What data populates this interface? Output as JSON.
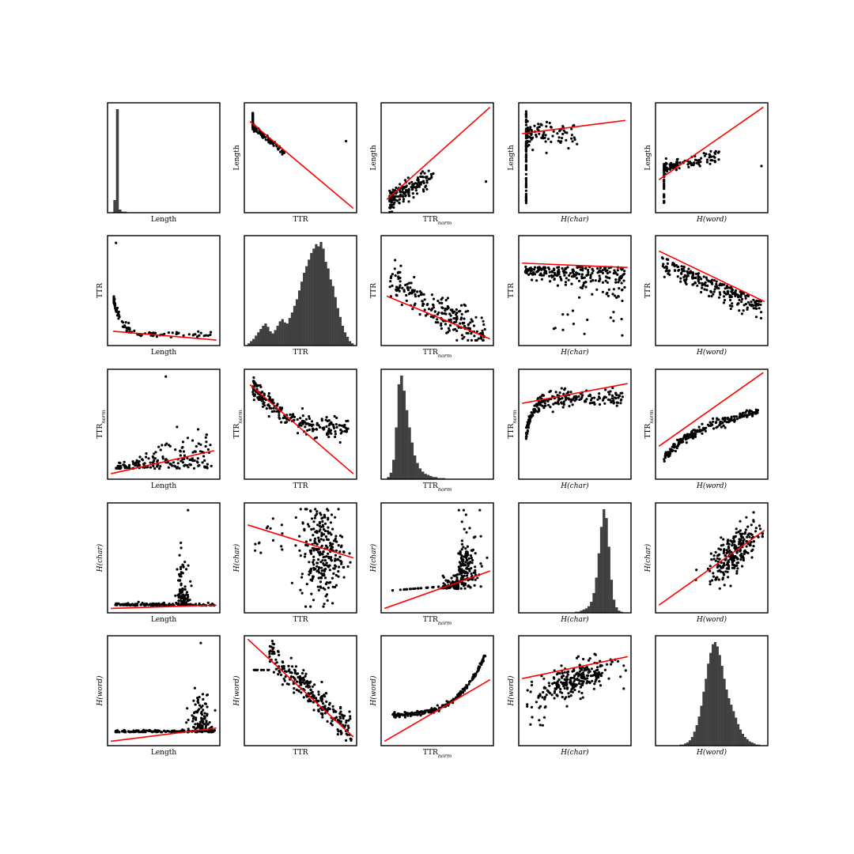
{
  "chart_data": {
    "type": "scatter-matrix",
    "variables": [
      {
        "name": "Length",
        "base": "Length",
        "sub": "",
        "italic": false
      },
      {
        "name": "TTR",
        "base": "TTR",
        "sub": "",
        "italic": false
      },
      {
        "name": "TTR_norm",
        "base": "TTR",
        "sub": "norm",
        "italic": false
      },
      {
        "name": "H(char)",
        "base": "H(char)",
        "sub": "",
        "italic": true
      },
      {
        "name": "H(word)",
        "base": "H(word)",
        "sub": "",
        "italic": true
      }
    ],
    "grid": "off",
    "ticks": "none",
    "diagonal": "histogram",
    "off_diagonal": "scatter with linear regression fit",
    "colors": {
      "points": "#000000",
      "fit_line": "#ff0000",
      "histogram": "#404040",
      "frame": "#000000"
    },
    "histograms": [
      [
        0,
        12,
        98,
        3,
        1,
        1,
        0,
        0,
        0,
        0,
        0,
        0,
        0,
        0,
        0,
        0,
        0,
        0,
        0,
        0,
        0,
        0,
        0,
        0,
        0,
        0,
        0,
        0,
        0,
        0,
        0,
        0,
        0,
        0,
        0,
        0,
        0,
        0,
        0,
        0
      ],
      [
        2,
        4,
        6,
        9,
        12,
        15,
        18,
        20,
        17,
        13,
        11,
        14,
        18,
        22,
        24,
        21,
        20,
        25,
        30,
        36,
        42,
        50,
        58,
        66,
        72,
        78,
        84,
        88,
        92,
        90,
        94,
        88,
        76,
        70,
        60,
        54,
        44,
        34,
        26,
        18,
        12,
        8,
        4,
        2
      ],
      [
        0,
        2,
        6,
        18,
        48,
        88,
        96,
        82,
        64,
        48,
        34,
        22,
        15,
        10,
        7,
        5,
        4,
        3,
        2,
        2,
        1,
        1,
        1,
        0,
        0,
        0,
        0,
        0,
        0,
        0,
        0,
        0,
        0,
        0,
        0,
        0,
        0,
        0,
        0,
        0
      ],
      [
        0,
        0,
        0,
        0,
        0,
        0,
        0,
        0,
        0,
        0,
        0,
        0,
        0,
        0,
        0,
        0,
        0,
        0,
        0,
        0,
        0,
        1,
        1,
        2,
        3,
        4,
        6,
        10,
        18,
        32,
        54,
        78,
        94,
        86,
        60,
        30,
        12,
        5,
        2,
        1,
        0,
        0
      ],
      [
        0,
        0,
        0,
        0,
        0,
        0,
        0,
        0,
        0,
        1,
        1,
        2,
        3,
        5,
        8,
        13,
        19,
        27,
        37,
        50,
        62,
        76,
        86,
        94,
        96,
        92,
        84,
        74,
        62,
        52,
        44,
        38,
        32,
        26,
        20,
        15,
        11,
        8,
        6,
        4,
        3,
        2,
        1,
        1,
        0,
        0
      ]
    ]
  }
}
